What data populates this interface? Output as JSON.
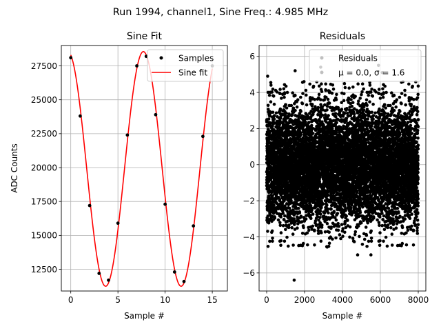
{
  "suptitle": "Run 1994, channel1, Sine Freq.: 4.985 MHz",
  "chart_data": [
    {
      "type": "line",
      "title": "Sine Fit",
      "xlabel": "Sample #",
      "ylabel": "ADC Counts",
      "xlim": [
        -1,
        16.6
      ],
      "ylim": [
        10900,
        29000
      ],
      "grid": true,
      "legend_position": "top-right",
      "x_ticks": [
        0,
        5,
        10,
        15
      ],
      "y_ticks": [
        12500,
        15000,
        17500,
        20000,
        22500,
        25000,
        27500
      ],
      "fit": {
        "amplitude": 8650,
        "offset": 19900,
        "period": 8.0,
        "phase_at_zero": 0.24
      },
      "series": [
        {
          "name": "Samples",
          "kind": "scatter",
          "color": "#000000",
          "x": [
            0,
            1,
            2,
            3,
            4,
            5,
            6,
            7,
            8,
            9,
            10,
            11,
            12,
            13,
            14,
            15
          ],
          "y": [
            28100,
            23800,
            17200,
            12200,
            11700,
            15900,
            22400,
            27500,
            28200,
            23900,
            17300,
            12300,
            11600,
            15700,
            22300,
            27500
          ]
        },
        {
          "name": "Sine fit",
          "kind": "line",
          "color": "#ff0000"
        }
      ]
    },
    {
      "type": "scatter",
      "title": "Residuals",
      "xlabel": "Sample #",
      "ylabel": "",
      "xlim": [
        -400,
        8400
      ],
      "ylim": [
        -7,
        6.6
      ],
      "grid": true,
      "legend_position": "top-right",
      "x_ticks": [
        0,
        2000,
        4000,
        6000,
        8000
      ],
      "y_ticks": [
        -6,
        -4,
        -2,
        0,
        2,
        4,
        6
      ],
      "series": [
        {
          "name": "Residuals",
          "color": "#000000",
          "n_points": 8000,
          "mean": 0.0,
          "sigma": 1.6,
          "outliers": [
            {
              "x": 1450,
              "y": -6.4
            },
            {
              "x": 2850,
              "y": 5.4
            },
            {
              "x": 50,
              "y": 4.9
            },
            {
              "x": 5900,
              "y": 5.5
            },
            {
              "x": 5500,
              "y": -5.0
            },
            {
              "x": 6100,
              "y": 5.1
            },
            {
              "x": 4800,
              "y": -5.0
            },
            {
              "x": 1500,
              "y": 5.2
            }
          ]
        }
      ],
      "legend_stats_text": "μ = 0.0, σ = 1.6"
    }
  ]
}
